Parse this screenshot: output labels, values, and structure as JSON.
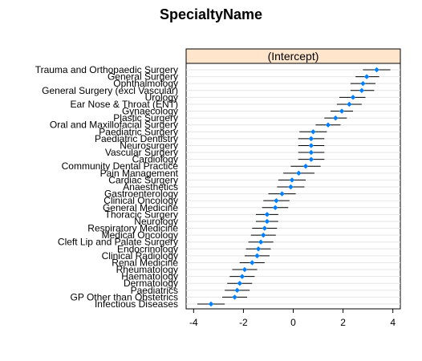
{
  "chart_data": {
    "type": "scatter",
    "title": "SpecialtyName",
    "panel_label": "(Intercept)",
    "xlabel": "",
    "ylabel": "",
    "xlim": [
      -4.3,
      4.3
    ],
    "x_ticks": [
      -4,
      -2,
      0,
      2,
      4
    ],
    "x_tick_labels": [
      "-4",
      "-2",
      "0",
      "2",
      "4"
    ],
    "grid": true,
    "strip_color": "#ffe5cc",
    "point_color": "#0080ff",
    "categories": [
      "Trauma and Orthopaedic Surgery",
      "General Surgery",
      "Ophthalmology",
      "General Surgery (excl Vascular)",
      "Urology",
      "Ear Nose & Throat (ENT)",
      "Gynaecology",
      "Plastic Surgery",
      "Oral and Maxillofacial Surgery",
      "Paediatric Surgery",
      "Paediatric Dentistry",
      "Neurosurgery",
      "Vascular Surgery",
      "Cardiology",
      "Community Dental Practice",
      "Pain Management",
      "Cardiac Surgery",
      "Anaesthetics",
      "Gastroenterology",
      "Clinical Oncology",
      "General Medicine",
      "Thoracic Surgery",
      "Neurology",
      "Respiratory Medicine",
      "Medical Oncology",
      "Cleft Lip and Palate Surgery",
      "Endocrinology",
      "Clinical Radiology",
      "Renal Medicine",
      "Rheumatology",
      "Haematology",
      "Dermatology",
      "Paediatrics",
      "GP Other than Obstetrics",
      "Infectious Diseases"
    ],
    "values": [
      3.35,
      2.95,
      2.8,
      2.75,
      2.4,
      2.25,
      1.95,
      1.7,
      1.4,
      0.8,
      0.72,
      0.72,
      0.72,
      0.72,
      0.5,
      0.22,
      -0.05,
      -0.1,
      -0.45,
      -0.68,
      -0.72,
      -1.05,
      -1.05,
      -1.15,
      -1.2,
      -1.3,
      -1.4,
      -1.45,
      -1.65,
      -1.95,
      -2.05,
      -2.15,
      -2.25,
      -2.35,
      -3.3
    ],
    "ci_lower": [
      2.8,
      2.5,
      2.3,
      2.3,
      1.85,
      1.75,
      1.5,
      1.25,
      0.9,
      0.25,
      0.2,
      0.2,
      0.2,
      0.2,
      -0.1,
      -0.4,
      -0.6,
      -0.65,
      -1.0,
      -1.2,
      -1.25,
      -1.5,
      -1.5,
      -1.65,
      -1.7,
      -1.8,
      -1.9,
      -1.95,
      -2.15,
      -2.45,
      -2.55,
      -2.65,
      -2.75,
      -2.85,
      -3.85
    ],
    "ci_upper": [
      3.9,
      3.45,
      3.3,
      3.25,
      2.9,
      2.75,
      2.4,
      2.15,
      1.9,
      1.35,
      1.25,
      1.25,
      1.25,
      1.25,
      1.1,
      0.85,
      0.5,
      0.45,
      0.1,
      -0.15,
      -0.2,
      -0.6,
      -0.6,
      -0.65,
      -0.7,
      -0.8,
      -0.9,
      -0.95,
      -1.15,
      -1.45,
      -1.55,
      -1.65,
      -1.75,
      -1.85,
      -2.75
    ]
  }
}
